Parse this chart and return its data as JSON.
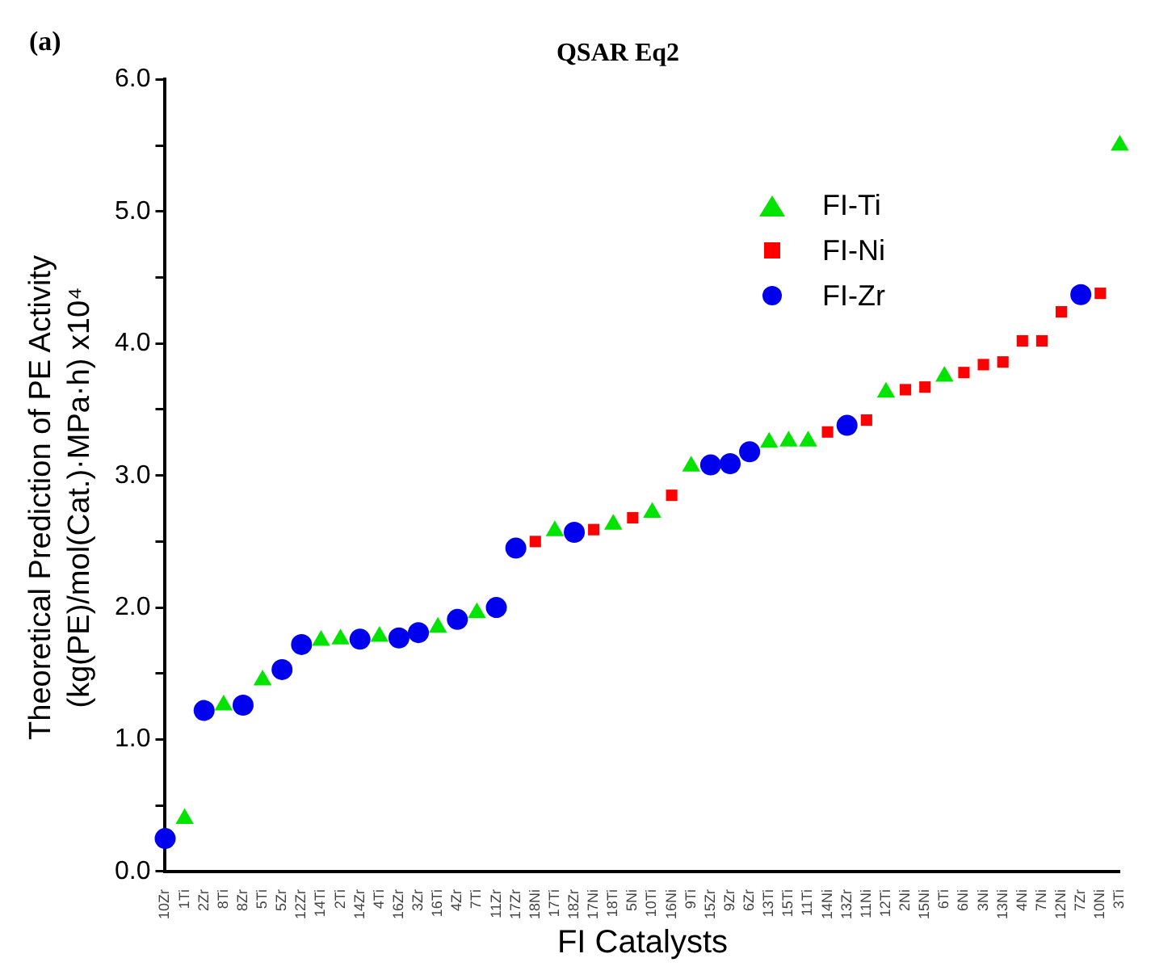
{
  "chart_data": {
    "type": "scatter",
    "title": "QSAR Eq2",
    "xlabel": "FI Catalysts",
    "ylabel": "Theoretical Prediction of PE Activity (kg(PE)/mol(Cat.)·MPa·h) x10⁴",
    "annotations": [
      "(a)"
    ],
    "categories": [
      "10Zr",
      "1Ti",
      "2Zr",
      "8Ti",
      "8Zr",
      "5Ti",
      "5Zr",
      "12Zr",
      "14Ti",
      "2Ti",
      "14Zr",
      "4Ti",
      "16Zr",
      "3Zr",
      "16Ti",
      "4Zr",
      "7Ti",
      "11Zr",
      "17Zr",
      "18Ni",
      "17Ti",
      "18Zr",
      "17Ni",
      "18Ti",
      "5Ni",
      "10Ti",
      "16Ni",
      "9Ti",
      "15Zr",
      "9Zr",
      "6Zr",
      "13Ti",
      "15Ti",
      "11Ti",
      "14Ni",
      "13Zr",
      "11Ni",
      "12Ti",
      "2Ni",
      "15Ni",
      "6Ti",
      "6Ni",
      "3Ni",
      "13Ni",
      "4Ni",
      "7Ni",
      "12Ni",
      "7Zr",
      "10Ni",
      "3Ti"
    ],
    "series": [
      {
        "name": "FI-Ti",
        "color": "#00e400",
        "marker": "triangle",
        "values": [
          null,
          0.4,
          null,
          1.26,
          null,
          1.45,
          null,
          null,
          1.75,
          1.76,
          null,
          1.78,
          null,
          null,
          1.85,
          null,
          1.96,
          null,
          null,
          null,
          2.58,
          null,
          null,
          2.63,
          null,
          2.72,
          null,
          3.07,
          null,
          null,
          null,
          3.25,
          3.26,
          3.26,
          null,
          null,
          null,
          3.63,
          null,
          null,
          3.75,
          null,
          null,
          null,
          null,
          null,
          null,
          null,
          null,
          5.5
        ]
      },
      {
        "name": "FI-Ni",
        "color": "#ff0000",
        "marker": "square",
        "values": [
          null,
          null,
          null,
          null,
          null,
          null,
          null,
          null,
          null,
          null,
          null,
          null,
          null,
          null,
          null,
          null,
          null,
          null,
          null,
          2.5,
          null,
          null,
          2.59,
          null,
          2.68,
          null,
          2.85,
          null,
          null,
          null,
          null,
          null,
          null,
          null,
          3.33,
          null,
          3.42,
          null,
          3.65,
          3.67,
          null,
          3.78,
          3.84,
          3.86,
          4.02,
          4.02,
          4.24,
          null,
          4.38,
          null
        ]
      },
      {
        "name": "FI-Zr",
        "color": "#0000ee",
        "marker": "circle",
        "values": [
          0.25,
          null,
          1.22,
          null,
          1.26,
          null,
          1.53,
          1.72,
          null,
          null,
          1.76,
          null,
          1.77,
          1.81,
          null,
          1.91,
          null,
          2.0,
          2.45,
          null,
          null,
          2.57,
          null,
          null,
          null,
          null,
          null,
          null,
          3.08,
          3.09,
          3.18,
          null,
          null,
          null,
          null,
          3.38,
          null,
          null,
          null,
          null,
          null,
          null,
          null,
          null,
          null,
          null,
          null,
          4.37,
          null,
          null
        ]
      }
    ],
    "ylim": [
      0,
      6
    ],
    "yticks": [
      {
        "value": 0,
        "label": "0.0"
      },
      {
        "value": 0.5,
        "label": null
      },
      {
        "value": 1,
        "label": "1.0"
      },
      {
        "value": 1.5,
        "label": null
      },
      {
        "value": 2,
        "label": "2.0"
      },
      {
        "value": 2.5,
        "label": null
      },
      {
        "value": 3,
        "label": "3.0"
      },
      {
        "value": 3.5,
        "label": null
      },
      {
        "value": 4,
        "label": "4.0"
      },
      {
        "value": 4.5,
        "label": null
      },
      {
        "value": 5,
        "label": "5.0"
      },
      {
        "value": 5.5,
        "label": null
      },
      {
        "value": 6,
        "label": "6.0"
      }
    ],
    "grid": false,
    "legend": "top right"
  }
}
